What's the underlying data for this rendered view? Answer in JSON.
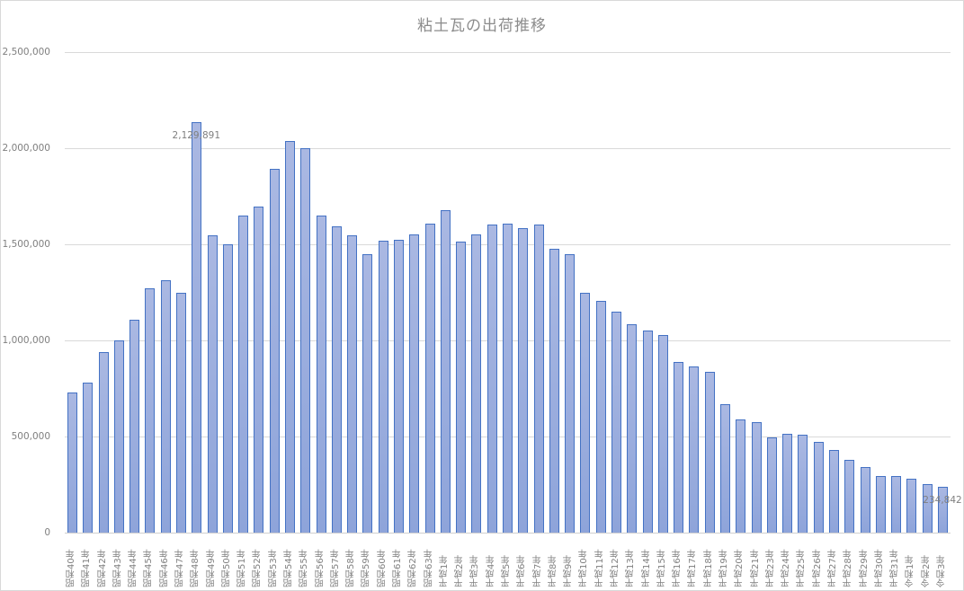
{
  "chart_data": {
    "type": "bar",
    "title": "粘土瓦の出荷推移",
    "xlabel": "",
    "ylabel": "",
    "ylim": [
      0,
      2500000
    ],
    "yticks": [
      0,
      500000,
      1000000,
      1500000,
      2000000,
      2500000
    ],
    "ytick_labels": [
      "0",
      "500,000",
      "1,000,000",
      "1,500,000",
      "2,000,000",
      "2,500,000"
    ],
    "grid": true,
    "legend": "none",
    "bar_color": "#a3b4e0",
    "bar_border_color": "#4472c4",
    "categories": [
      "昭和40年",
      "昭和41年",
      "昭和42年",
      "昭和43年",
      "昭和44年",
      "昭和45年",
      "昭和46年",
      "昭和47年",
      "昭和48年",
      "昭和49年",
      "昭和50年",
      "昭和51年",
      "昭和52年",
      "昭和53年",
      "昭和54年",
      "昭和55年",
      "昭和56年",
      "昭和57年",
      "昭和58年",
      "昭和59年",
      "昭和60年",
      "昭和61年",
      "昭和62年",
      "昭和63年",
      "平成1年",
      "平成2年",
      "平成3年",
      "平成4年",
      "平成5年",
      "平成6年",
      "平成7年",
      "平成8年",
      "平成9年",
      "平成10年",
      "平成11年",
      "平成12年",
      "平成13年",
      "平成14年",
      "平成15年",
      "平成16年",
      "平成17年",
      "平成18年",
      "平成19年",
      "平成20年",
      "平成21年",
      "平成23年",
      "平成24年",
      "平成25年",
      "平成26年",
      "平成27年",
      "平成28年",
      "平成29年",
      "平成30年",
      "平成31年",
      "令和1年",
      "令和2年",
      "令和3年"
    ],
    "values": [
      724000,
      776000,
      935000,
      995000,
      1103000,
      1266000,
      1308000,
      1243000,
      2129891,
      1542000,
      1495000,
      1645000,
      1692000,
      1888000,
      2033000,
      1995000,
      1645000,
      1589000,
      1542000,
      1444000,
      1514000,
      1519000,
      1547000,
      1603000,
      1673000,
      1509000,
      1547000,
      1598000,
      1603000,
      1579000,
      1598000,
      1472000,
      1444000,
      1243000,
      1201000,
      1145000,
      1079000,
      1047000,
      1023000,
      883000,
      860000,
      832000,
      664000,
      584000,
      570000,
      491000,
      509000,
      505000,
      467000,
      425000,
      374000,
      336000,
      290000,
      290000,
      276000,
      248000,
      234842
    ],
    "data_labels": [
      {
        "category": "昭和48年",
        "text": "2,129,891"
      },
      {
        "category": "令和3年",
        "text": "234,842"
      }
    ]
  }
}
